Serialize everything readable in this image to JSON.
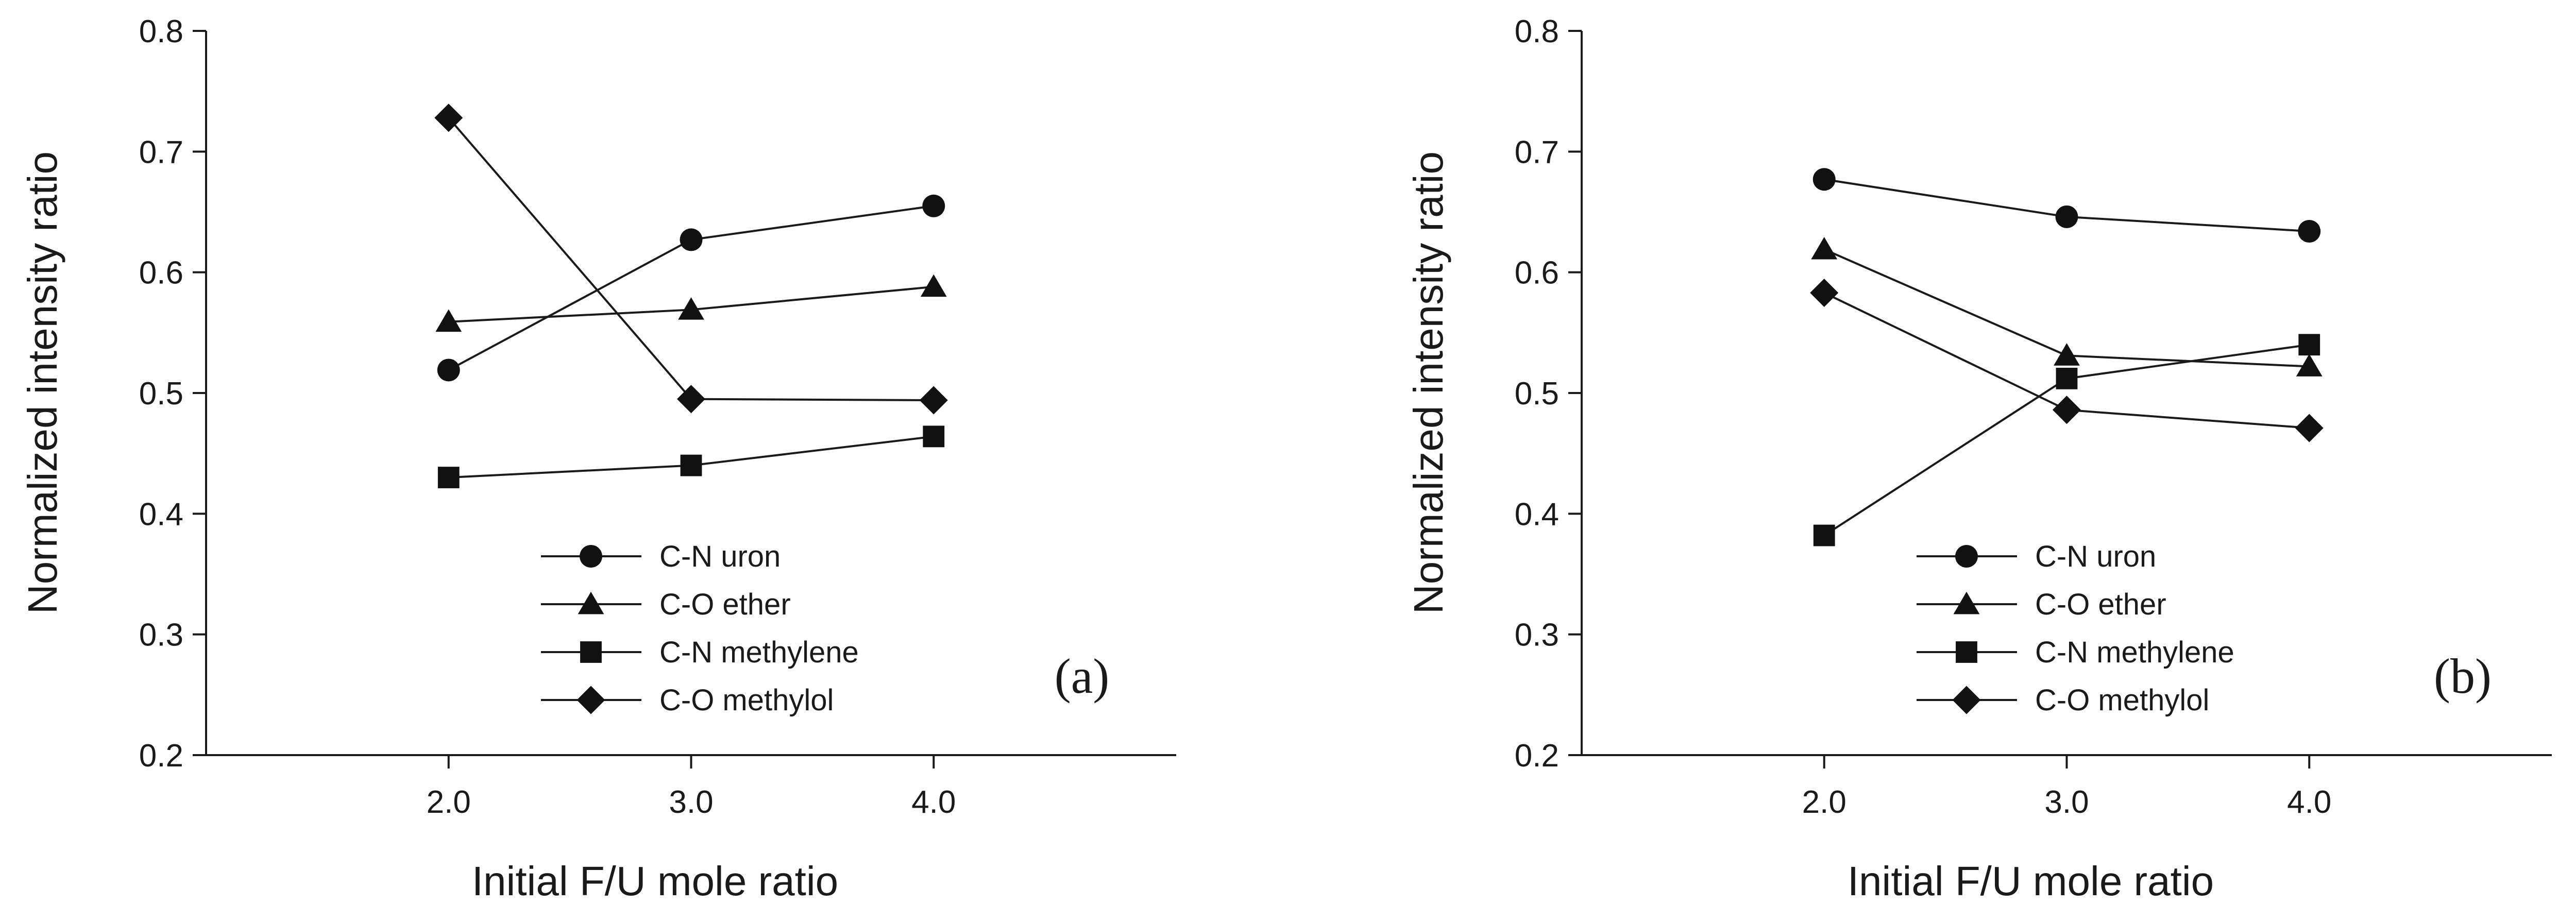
{
  "chart_data": [
    {
      "type": "line",
      "panel_label": "(a)",
      "xlabel": "Initial F/U mole ratio",
      "ylabel": "Normalized intensity ratio",
      "x": [
        2.0,
        3.0,
        4.0
      ],
      "x_tick_labels": [
        "2.0",
        "3.0",
        "4.0"
      ],
      "xlim": [
        1.0,
        5.0
      ],
      "ylim": [
        0.2,
        0.8
      ],
      "y_ticks": [
        0.2,
        0.3,
        0.4,
        0.5,
        0.6,
        0.7,
        0.8
      ],
      "y_tick_labels": [
        "0.2",
        "0.3",
        "0.4",
        "0.5",
        "0.6",
        "0.7",
        "0.8"
      ],
      "grid": false,
      "legend_position": "bottom-center",
      "series": [
        {
          "name": "C-N uron",
          "marker": "circle",
          "values": [
            0.519,
            0.627,
            0.655
          ]
        },
        {
          "name": "C-O ether",
          "marker": "triangle",
          "values": [
            0.559,
            0.569,
            0.588
          ]
        },
        {
          "name": "C-N methylene",
          "marker": "square",
          "values": [
            0.43,
            0.44,
            0.464
          ]
        },
        {
          "name": "C-O methylol",
          "marker": "diamond",
          "values": [
            0.728,
            0.495,
            0.494
          ]
        }
      ]
    },
    {
      "type": "line",
      "panel_label": "(b)",
      "xlabel": "Initial F/U mole ratio",
      "ylabel": "Normalized intensity ratio",
      "x": [
        2.0,
        3.0,
        4.0
      ],
      "x_tick_labels": [
        "2.0",
        "3.0",
        "4.0"
      ],
      "xlim": [
        1.0,
        5.0
      ],
      "ylim": [
        0.2,
        0.8
      ],
      "y_ticks": [
        0.2,
        0.3,
        0.4,
        0.5,
        0.6,
        0.7,
        0.8
      ],
      "y_tick_labels": [
        "0.2",
        "0.3",
        "0.4",
        "0.5",
        "0.6",
        "0.7",
        "0.8"
      ],
      "grid": false,
      "legend_position": "bottom-center",
      "series": [
        {
          "name": "C-N uron",
          "marker": "circle",
          "values": [
            0.677,
            0.646,
            0.634
          ]
        },
        {
          "name": "C-O ether",
          "marker": "triangle",
          "values": [
            0.619,
            0.531,
            0.522
          ]
        },
        {
          "name": "C-N methylene",
          "marker": "square",
          "values": [
            0.382,
            0.512,
            0.54
          ]
        },
        {
          "name": "C-O methylol",
          "marker": "diamond",
          "values": [
            0.583,
            0.486,
            0.471
          ]
        }
      ]
    }
  ],
  "colors": {
    "axis": "#1a1a1a",
    "line": "#1a1a1a",
    "marker": "#111111",
    "background": "#ffffff"
  }
}
